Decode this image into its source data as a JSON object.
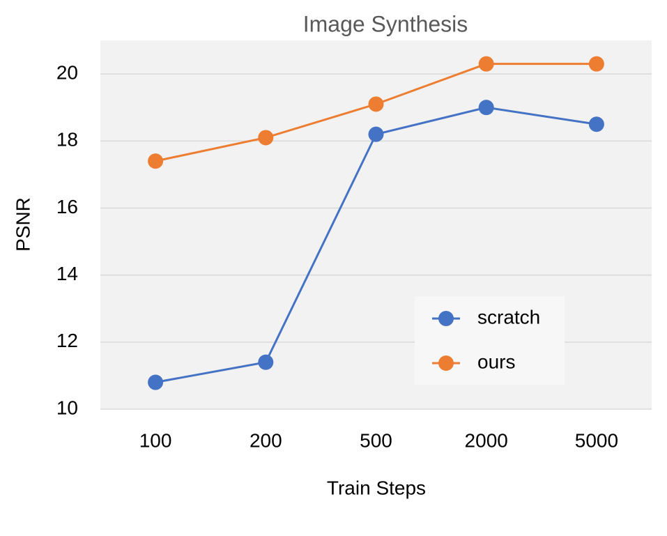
{
  "chart_data": {
    "type": "line",
    "title": "Image Synthesis",
    "x_label": "Train Steps",
    "y_label": "PSNR",
    "categories": [
      "100",
      "200",
      "500",
      "2000",
      "5000"
    ],
    "series": [
      {
        "name": "scratch",
        "color": "#4472c4",
        "values": [
          10.8,
          11.4,
          18.2,
          19.0,
          18.5
        ]
      },
      {
        "name": "ours",
        "color": "#ed7d31",
        "values": [
          17.4,
          18.1,
          19.1,
          20.3,
          20.3
        ]
      }
    ],
    "ylim": [
      10,
      21
    ],
    "yticks": [
      10,
      12,
      14,
      16,
      18,
      20
    ],
    "grid": true,
    "legend": "lower right"
  }
}
